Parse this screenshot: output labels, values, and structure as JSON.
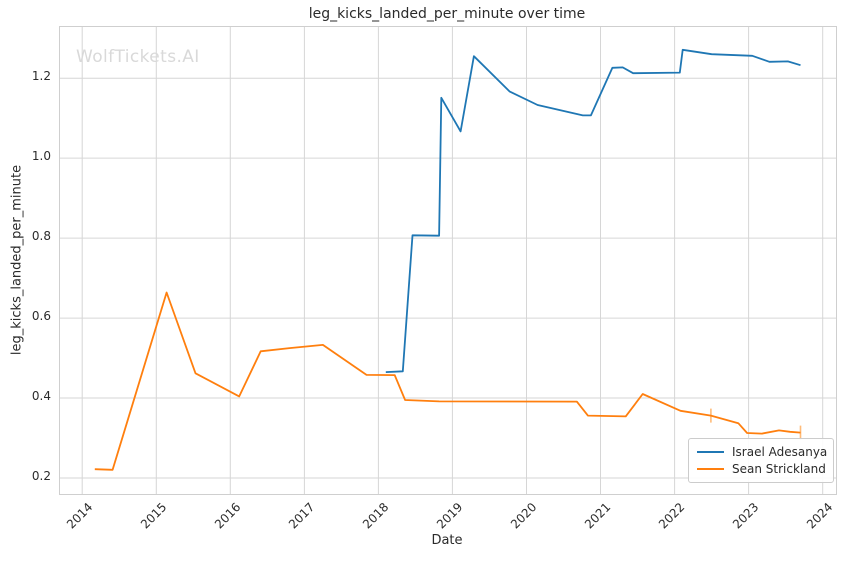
{
  "title": "leg_kicks_landed_per_minute over time",
  "watermark": "WolfTickets.AI",
  "xlabel": "Date",
  "ylabel": "leg_kicks_landed_per_minute",
  "colors": {
    "series_blue": "#1f77b4",
    "series_orange": "#ff7f0e",
    "grid": "#d6d6d6",
    "spine": "#cfcfcf",
    "text": "#2b2b2b",
    "watermark": "#d9d9d9",
    "event_tick": "#ffbb78"
  },
  "chart_data": {
    "type": "line",
    "title": "leg_kicks_landed_per_minute over time",
    "xlabel": "Date",
    "ylabel": "leg_kicks_landed_per_minute",
    "xlim": [
      2013.7,
      2024.18
    ],
    "ylim": [
      0.16,
      1.328
    ],
    "grid": true,
    "legend_position": "lower right",
    "x_ticks": [
      2014,
      2015,
      2016,
      2017,
      2018,
      2019,
      2020,
      2021,
      2022,
      2023,
      2024
    ],
    "x_tick_labels": [
      "2014",
      "2015",
      "2016",
      "2017",
      "2018",
      "2019",
      "2020",
      "2021",
      "2022",
      "2023",
      "2024"
    ],
    "y_ticks": [
      0.2,
      0.4,
      0.6,
      0.8,
      1.0,
      1.2
    ],
    "y_tick_labels": [
      "0.2",
      "0.4",
      "0.6",
      "0.8",
      "1.0",
      "1.2"
    ],
    "series": [
      {
        "name": "Israel Adesanya",
        "color": "#1f77b4",
        "points": [
          [
            2018.1,
            0.465
          ],
          [
            2018.33,
            0.467
          ],
          [
            2018.46,
            0.807
          ],
          [
            2018.82,
            0.806
          ],
          [
            2018.85,
            1.151
          ],
          [
            2019.11,
            1.067
          ],
          [
            2019.29,
            1.255
          ],
          [
            2019.77,
            1.167
          ],
          [
            2020.15,
            1.133
          ],
          [
            2020.76,
            1.107
          ],
          [
            2020.87,
            1.107
          ],
          [
            2021.16,
            1.226
          ],
          [
            2021.3,
            1.227
          ],
          [
            2021.44,
            1.2125
          ],
          [
            2022.07,
            1.214
          ],
          [
            2022.11,
            1.271
          ],
          [
            2022.5,
            1.26
          ],
          [
            2023.05,
            1.256
          ],
          [
            2023.28,
            1.241
          ],
          [
            2023.53,
            1.242
          ],
          [
            2023.7,
            1.2325
          ]
        ]
      },
      {
        "name": "Sean Strickland",
        "color": "#ff7f0e",
        "points": [
          [
            2014.17,
            0.222
          ],
          [
            2014.41,
            0.2205
          ],
          [
            2015.14,
            0.664
          ],
          [
            2015.53,
            0.462
          ],
          [
            2016.12,
            0.404
          ],
          [
            2016.41,
            0.517
          ],
          [
            2016.8,
            0.525
          ],
          [
            2017.25,
            0.533
          ],
          [
            2017.84,
            0.458
          ],
          [
            2018.22,
            0.4575
          ],
          [
            2018.36,
            0.395
          ],
          [
            2018.82,
            0.3915
          ],
          [
            2020.68,
            0.391
          ],
          [
            2020.83,
            0.356
          ],
          [
            2021.34,
            0.354
          ],
          [
            2021.57,
            0.41
          ],
          [
            2022.08,
            0.368
          ],
          [
            2022.49,
            0.356
          ],
          [
            2022.86,
            0.337
          ],
          [
            2022.98,
            0.3125
          ],
          [
            2023.18,
            0.311
          ],
          [
            2023.41,
            0.319
          ],
          [
            2023.56,
            0.3155
          ],
          [
            2023.7,
            0.3135
          ]
        ]
      }
    ],
    "event_ticks": [
      {
        "x": 2022.49,
        "y": 0.356,
        "series": "Sean Strickland"
      },
      {
        "x": 2023.7,
        "y": 0.3135,
        "series": "Sean Strickland"
      }
    ]
  }
}
